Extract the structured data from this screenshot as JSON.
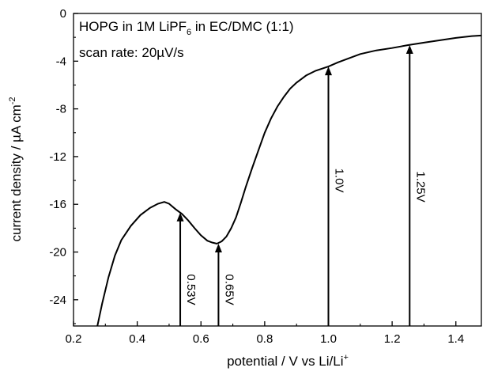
{
  "chart_data": {
    "type": "line",
    "xlabel_main": "potential / V vs Li/Li",
    "xlabel_sup": "+",
    "ylabel_main": "current density / µA cm",
    "ylabel_sup": "-2",
    "xlim": [
      0.2,
      1.48
    ],
    "ylim": [
      -26.2,
      0
    ],
    "xticks": [
      0.2,
      0.4,
      0.6,
      0.8,
      1.0,
      1.2,
      1.4
    ],
    "xtick_labels": [
      "0.2",
      "0.4",
      "0.6",
      "0.8",
      "1.0",
      "1.2",
      "1.4"
    ],
    "yticks": [
      0,
      -4,
      -8,
      -12,
      -16,
      -20,
      -24
    ],
    "ytick_labels": [
      "0",
      "-4",
      "-8",
      "-12",
      "-16",
      "-20",
      "-24"
    ],
    "annotation_line1": {
      "a": "HOPG in 1M LiPF",
      "sub": "6",
      "b": " in EC/DMC (1:1)"
    },
    "annotation_line2": "scan rate: 20µV/s",
    "grid": false,
    "series": [
      {
        "x": [
          0.275,
          0.29,
          0.31,
          0.33,
          0.35,
          0.38,
          0.41,
          0.44,
          0.465,
          0.485,
          0.5,
          0.52,
          0.54,
          0.56,
          0.58,
          0.6,
          0.62,
          0.635,
          0.65,
          0.665,
          0.68,
          0.695,
          0.71,
          0.725,
          0.74,
          0.76,
          0.78,
          0.8,
          0.82,
          0.84,
          0.86,
          0.88,
          0.9,
          0.93,
          0.96,
          1.0,
          1.03,
          1.07,
          1.1,
          1.15,
          1.2,
          1.25,
          1.3,
          1.35,
          1.4,
          1.45,
          1.48
        ],
        "y": [
          -26.2,
          -24.3,
          -22.1,
          -20.3,
          -19.0,
          -17.8,
          -16.9,
          -16.3,
          -15.95,
          -15.8,
          -15.95,
          -16.4,
          -16.8,
          -17.35,
          -18.0,
          -18.6,
          -19.05,
          -19.2,
          -19.3,
          -19.1,
          -18.7,
          -18.0,
          -17.1,
          -15.9,
          -14.6,
          -13.0,
          -11.5,
          -10.0,
          -8.8,
          -7.8,
          -7.0,
          -6.3,
          -5.8,
          -5.2,
          -4.8,
          -4.45,
          -4.1,
          -3.7,
          -3.4,
          -3.1,
          -2.9,
          -2.65,
          -2.45,
          -2.25,
          -2.05,
          -1.9,
          -1.85
        ]
      }
    ],
    "arrows": [
      {
        "label": "0.53V",
        "x": 0.535,
        "y_tip": -16.7
      },
      {
        "label": "0.65V",
        "x": 0.655,
        "y_tip": -19.3
      },
      {
        "label": "1.0V",
        "x": 1.0,
        "y_tip": -4.45
      },
      {
        "label": "1.25V",
        "x": 1.255,
        "y_tip": -2.65
      }
    ]
  }
}
